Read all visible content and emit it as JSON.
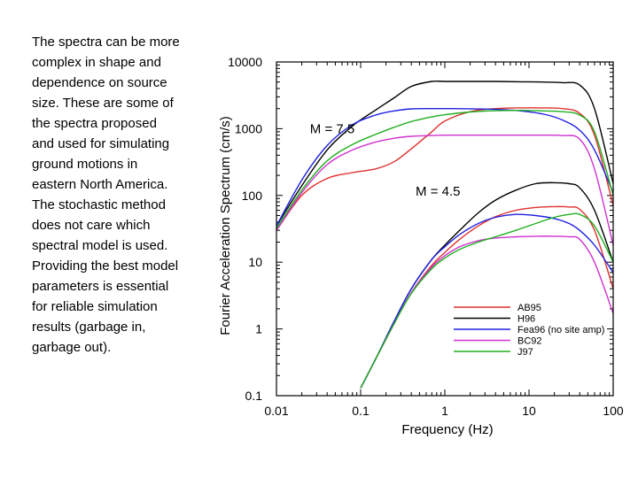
{
  "slide": {
    "text": "The spectra can be more\ncomplex in shape and\ndependence on source\nsize.  These are some of\nthe spectra proposed\nand used for simulating\nground motions in\neastern North America.\nThe stochastic method\ndoes not care which\nspectral model is used.\nProviding the best model\nparameters is essential\nfor reliable simulation\nresults (garbage in,\ngarbage out)."
  },
  "chart_data": {
    "type": "line",
    "xscale": "log",
    "yscale": "log",
    "xlabel": "Frequency (Hz)",
    "ylabel": "Fourier Acceleration Spectrum (cm/s)",
    "xlim": [
      0.01,
      100
    ],
    "ylim": [
      0.1,
      10000
    ],
    "xticks": [
      "0.01",
      "0.1",
      "1",
      "10",
      "100"
    ],
    "yticks": [
      "0.1",
      "1",
      "10",
      "100",
      "1000",
      "10000"
    ],
    "annotations": [
      {
        "text": "M = 7.5",
        "x": 0.025,
        "y": 1000
      },
      {
        "text": "M = 4.5",
        "x": 0.45,
        "y": 115
      }
    ],
    "legend": {
      "position": "bottom-right"
    },
    "series": [
      {
        "name": "AB95",
        "color": "#e03030",
        "group": "M7.5",
        "x": [
          0.01,
          0.02,
          0.04,
          0.08,
          0.15,
          0.25,
          0.4,
          0.7,
          1,
          2,
          4,
          8,
          15,
          25,
          40,
          60,
          100
        ],
        "y": [
          30,
          100,
          180,
          220,
          250,
          320,
          500,
          900,
          1300,
          1800,
          2000,
          2050,
          2050,
          2000,
          1700,
          800,
          70
        ]
      },
      {
        "name": "H96",
        "color": "#000000",
        "group": "M7.5",
        "x": [
          0.01,
          0.02,
          0.04,
          0.08,
          0.15,
          0.25,
          0.4,
          0.7,
          1,
          2,
          4,
          8,
          15,
          25,
          40,
          60,
          100
        ],
        "y": [
          35,
          140,
          480,
          1100,
          1900,
          2900,
          4300,
          5100,
          5100,
          5100,
          5100,
          5050,
          5000,
          4900,
          4500,
          2000,
          150
        ]
      },
      {
        "name": "Fea96 (no site amp)",
        "color": "#2020e0",
        "group": "M7.5",
        "x": [
          0.01,
          0.02,
          0.04,
          0.08,
          0.15,
          0.25,
          0.4,
          0.7,
          1,
          2,
          4,
          8,
          15,
          25,
          40,
          60,
          100
        ],
        "y": [
          35,
          170,
          560,
          1150,
          1600,
          1850,
          1980,
          2000,
          2000,
          1990,
          1950,
          1850,
          1650,
          1350,
          950,
          480,
          110
        ]
      },
      {
        "name": "BC92",
        "color": "#d030d0",
        "group": "M7.5",
        "x": [
          0.01,
          0.02,
          0.04,
          0.08,
          0.15,
          0.25,
          0.4,
          0.7,
          1,
          2,
          4,
          8,
          15,
          25,
          40,
          60,
          100
        ],
        "y": [
          30,
          110,
          290,
          480,
          630,
          720,
          770,
          790,
          800,
          800,
          800,
          800,
          800,
          790,
          700,
          250,
          18
        ]
      },
      {
        "name": "J97",
        "color": "#20b020",
        "group": "M7.5",
        "x": [
          0.01,
          0.02,
          0.04,
          0.08,
          0.15,
          0.25,
          0.4,
          0.7,
          1,
          2,
          4,
          8,
          15,
          25,
          40,
          60,
          100
        ],
        "y": [
          32,
          120,
          330,
          580,
          820,
          1050,
          1280,
          1500,
          1620,
          1780,
          1860,
          1880,
          1850,
          1800,
          1600,
          900,
          100
        ]
      },
      {
        "name": "AB95",
        "color": "#e03030",
        "group": "M4.5",
        "x": [
          0.1,
          0.15,
          0.25,
          0.4,
          0.7,
          1,
          1.5,
          2.5,
          4,
          7,
          12,
          20,
          30,
          40,
          60,
          100
        ],
        "y": [
          0.13,
          0.35,
          1.2,
          3.5,
          9,
          14,
          22,
          35,
          48,
          60,
          66,
          68,
          67,
          62,
          30,
          4
        ]
      },
      {
        "name": "H96",
        "color": "#000000",
        "group": "M4.5",
        "x": [
          0.1,
          0.15,
          0.25,
          0.4,
          0.7,
          1,
          1.5,
          2.5,
          4,
          7,
          12,
          20,
          30,
          40,
          60,
          100
        ],
        "y": [
          0.13,
          0.35,
          1.3,
          4,
          11,
          18,
          30,
          55,
          85,
          120,
          150,
          155,
          150,
          130,
          60,
          10
        ]
      },
      {
        "name": "Fea96 (no site amp)",
        "color": "#2020e0",
        "group": "M4.5",
        "x": [
          0.1,
          0.15,
          0.25,
          0.4,
          0.7,
          1,
          1.5,
          2.5,
          4,
          7,
          12,
          20,
          30,
          40,
          60,
          100
        ],
        "y": [
          0.13,
          0.35,
          1.3,
          4,
          11,
          17,
          26,
          38,
          47,
          52,
          50,
          45,
          38,
          30,
          18,
          7
        ]
      },
      {
        "name": "BC92",
        "color": "#d030d0",
        "group": "M4.5",
        "x": [
          0.1,
          0.15,
          0.25,
          0.4,
          0.7,
          1,
          1.5,
          2.5,
          4,
          7,
          12,
          20,
          30,
          40,
          60,
          100
        ],
        "y": [
          0.13,
          0.35,
          1.2,
          3.5,
          8.5,
          12.5,
          17,
          21,
          23,
          24,
          24.5,
          24.5,
          24,
          22,
          10,
          1.7
        ]
      },
      {
        "name": "J97",
        "color": "#20b020",
        "group": "M4.5",
        "x": [
          0.1,
          0.15,
          0.25,
          0.4,
          0.7,
          1,
          1.5,
          2.5,
          4,
          7,
          12,
          20,
          30,
          40,
          60,
          100
        ],
        "y": [
          0.13,
          0.35,
          1.2,
          3.4,
          8,
          11.5,
          15.5,
          20,
          24,
          30,
          38,
          47,
          52,
          52,
          35,
          10
        ]
      }
    ],
    "legend_entries": [
      {
        "name": "AB95",
        "color": "#e03030"
      },
      {
        "name": "H96",
        "color": "#000000"
      },
      {
        "name": "Fea96 (no site amp)",
        "color": "#2020e0"
      },
      {
        "name": "BC92",
        "color": "#d030d0"
      },
      {
        "name": "J97",
        "color": "#20b020"
      }
    ]
  }
}
